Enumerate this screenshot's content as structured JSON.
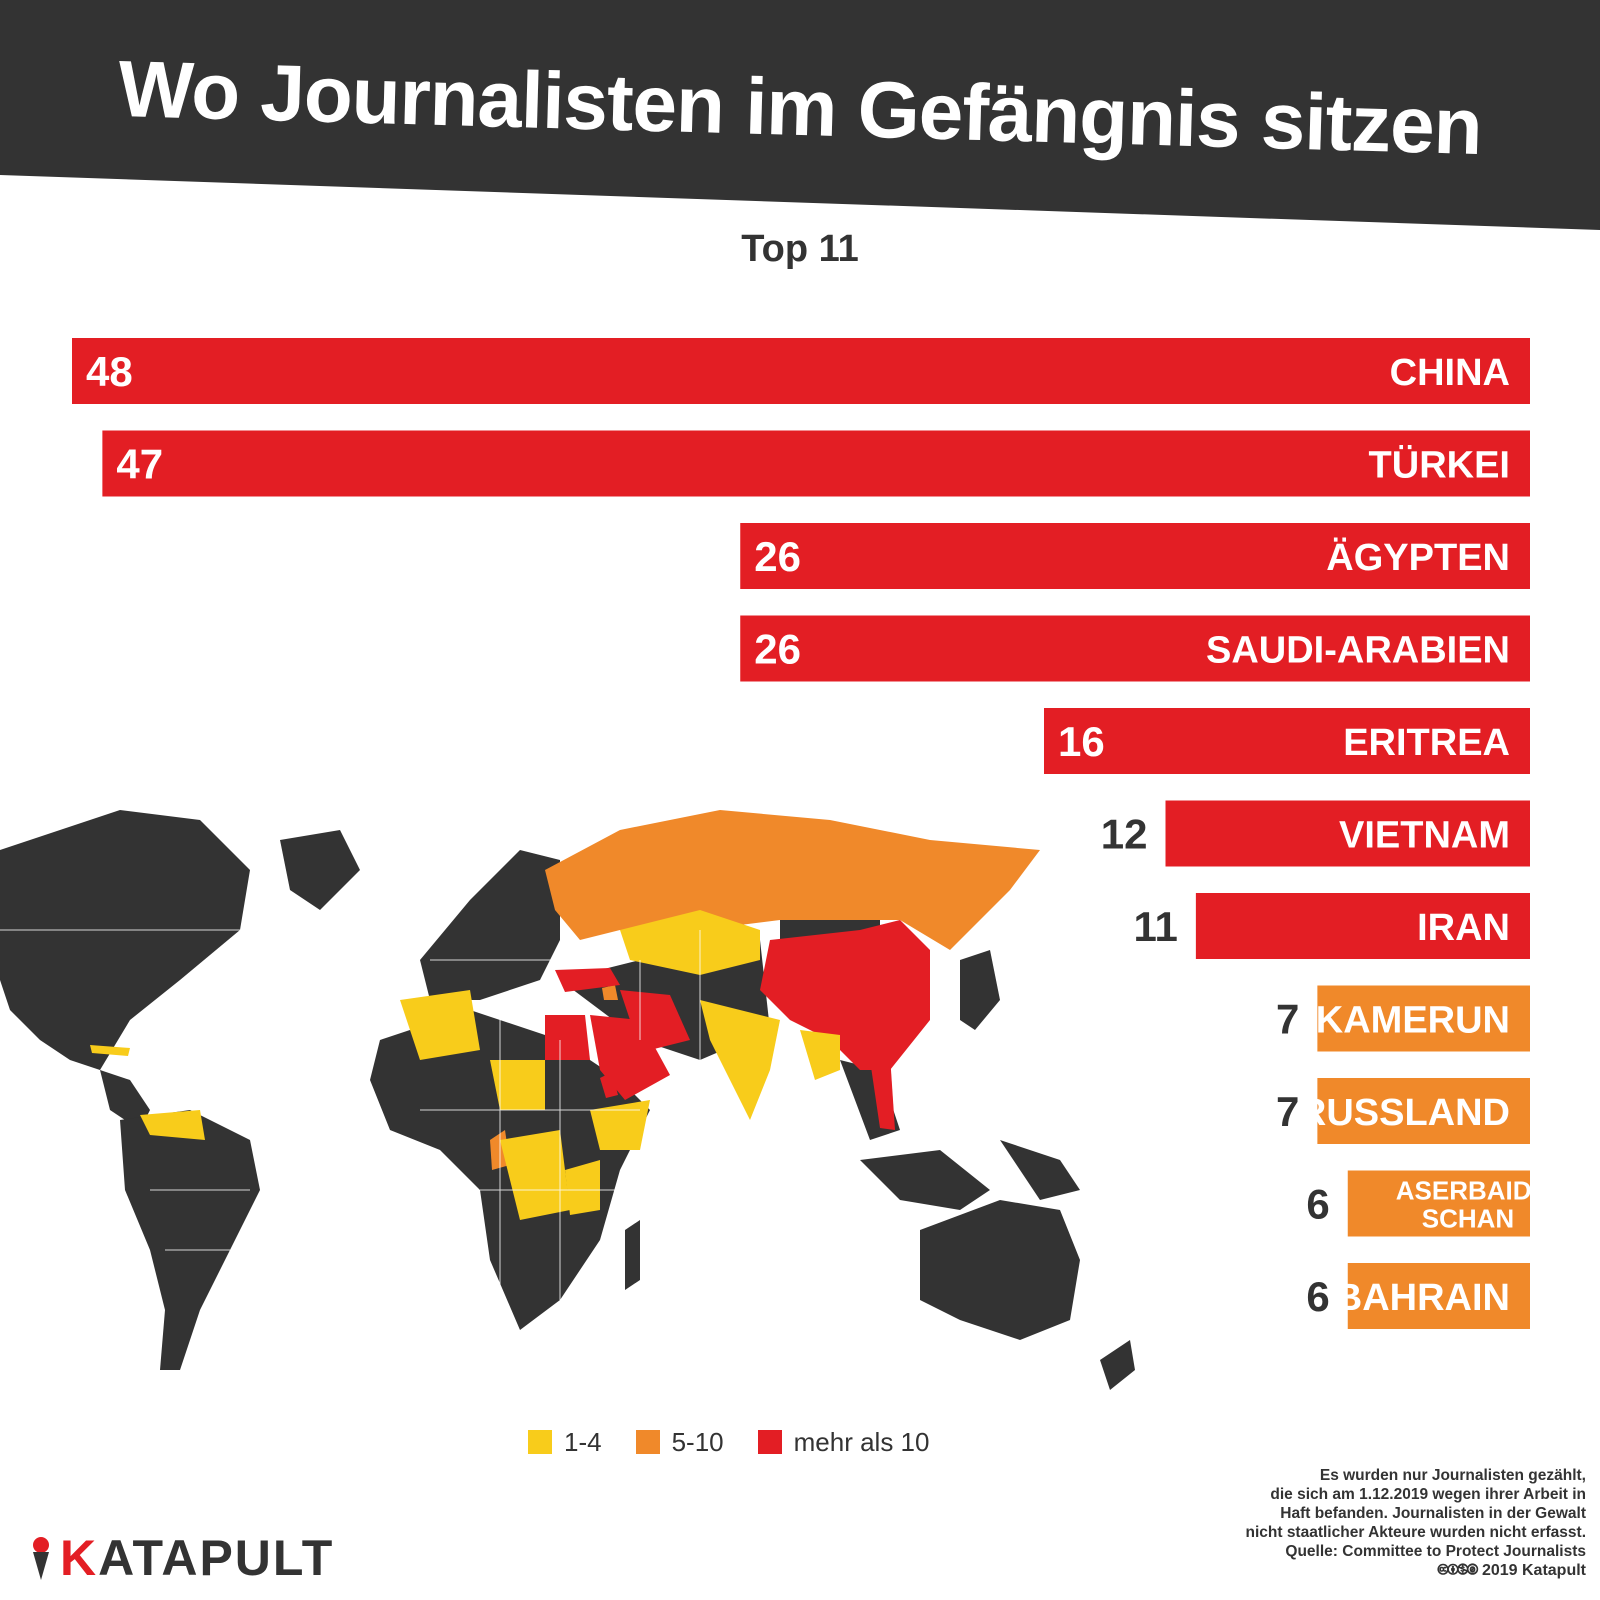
{
  "title": "Wo Journalisten im Gefängnis sitzen",
  "subtitle": "Top 11",
  "colors": {
    "banner": "#333333",
    "red": "#e31e24",
    "orange": "#f0892a",
    "yellow": "#f8cc1b",
    "land": "#333333"
  },
  "chart_data": {
    "type": "bar",
    "title": "Top 11",
    "categories": [
      "CHINA",
      "TÜRKEI",
      "ÄGYPTEN",
      "SAUDI-ARABIEN",
      "ERITREA",
      "VIETNAM",
      "IRAN",
      "KAMERUN",
      "RUSSLAND",
      "ASERBAID-\nSCHAN",
      "BAHRAIN"
    ],
    "values": [
      48,
      47,
      26,
      26,
      16,
      12,
      11,
      7,
      7,
      6,
      6
    ],
    "value_labels": [
      "48",
      "47",
      "26",
      "26",
      "16",
      "12",
      "11",
      "7",
      "7",
      "6",
      "6"
    ],
    "bar_colors": [
      "#e31e24",
      "#e31e24",
      "#e31e24",
      "#e31e24",
      "#e31e24",
      "#e31e24",
      "#e31e24",
      "#f0892a",
      "#f0892a",
      "#f0892a",
      "#f0892a"
    ],
    "orientation": "horizontal",
    "xlim": [
      0,
      48
    ]
  },
  "legend": [
    {
      "label": "1-4",
      "color": "#f8cc1b"
    },
    {
      "label": "5-10",
      "color": "#f0892a"
    },
    {
      "label": "mehr als 10",
      "color": "#e31e24"
    }
  ],
  "note": {
    "line1": "Es wurden nur Journalisten gezählt,",
    "line2": "die sich am 1.12.2019 wegen ihrer Arbeit in",
    "line3": "Haft befanden. Journalisten in der Gewalt",
    "line4": "nicht staatlicher Akteure wurden nicht erfasst.",
    "source": "Quelle: Committee to Protect Journalists",
    "license": "🅭🅯🄏🄍 2019 Katapult"
  },
  "logo": {
    "k": "K",
    "rest": "ATAPULT"
  }
}
